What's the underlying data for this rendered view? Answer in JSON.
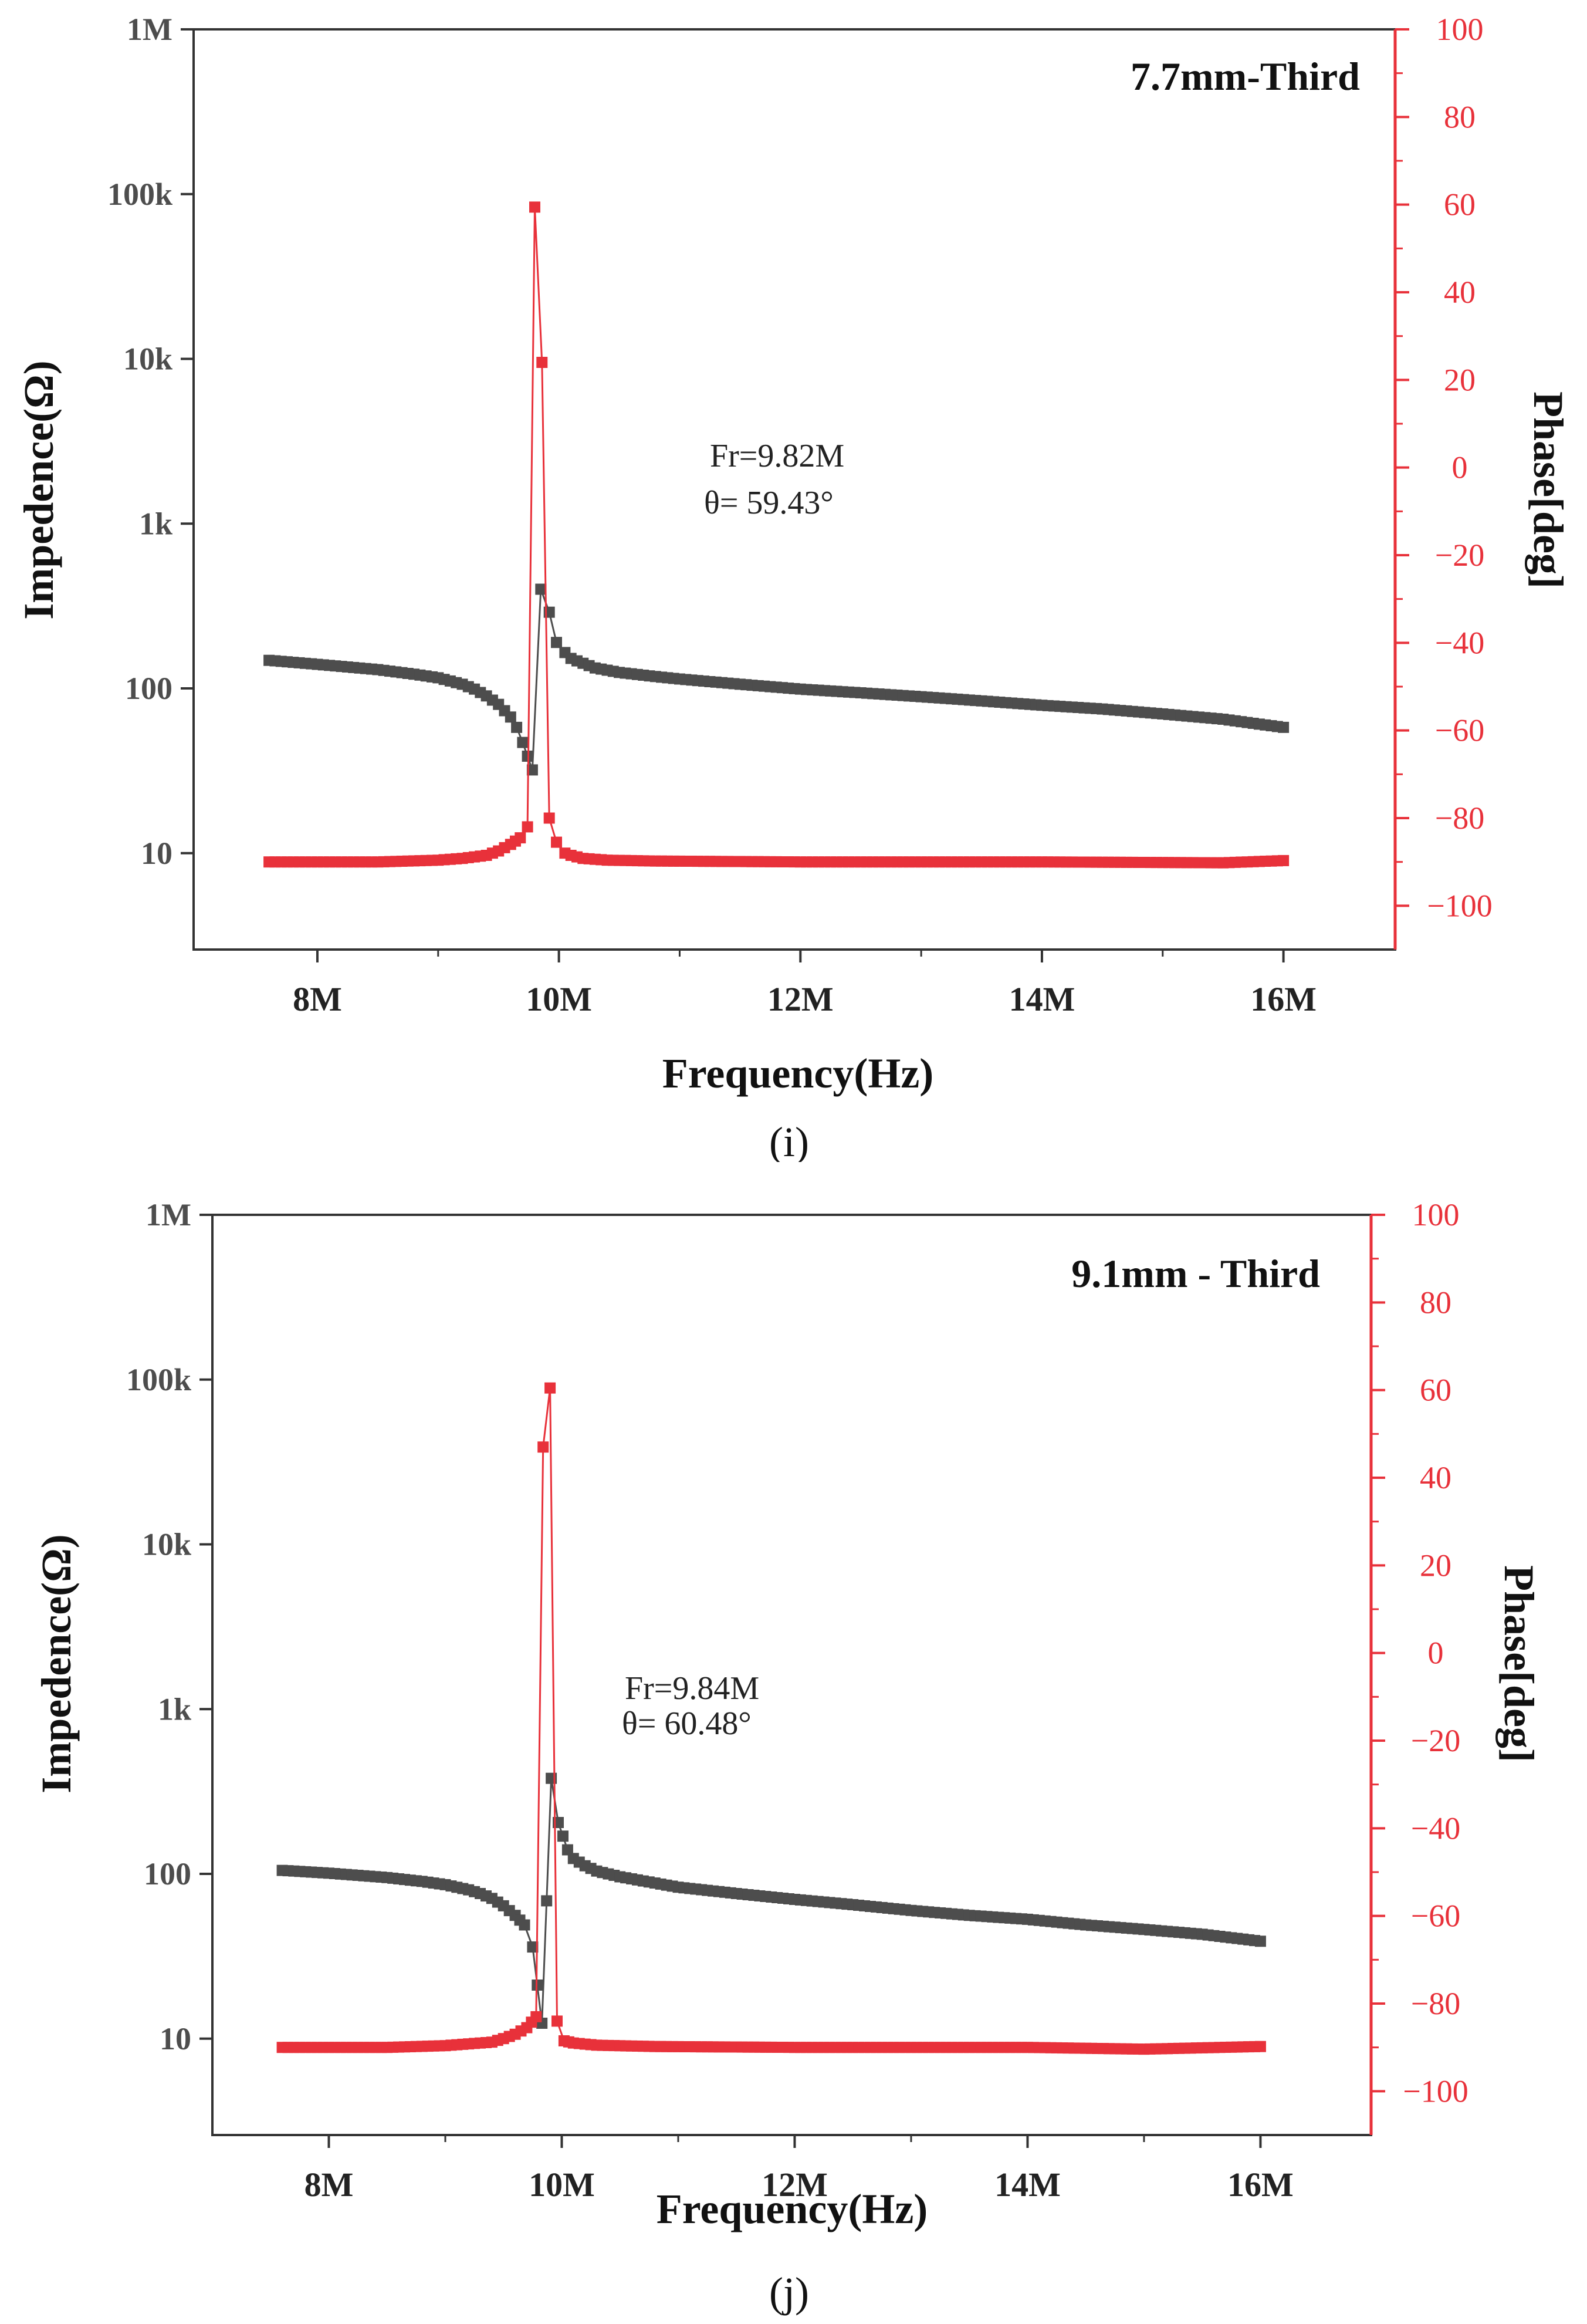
{
  "chart_data": [
    {
      "type": "line",
      "panel_label": "(i)",
      "title": "7.7mm-Third",
      "xlabel": "Frequency(Hz)",
      "ylabel_left": "Impedence(Ω)",
      "ylabel_right": "Phase[deg]",
      "x_ticks": [
        "8M",
        "10M",
        "12M",
        "14M",
        "16M"
      ],
      "x_tick_values": [
        8,
        10,
        12,
        14,
        16
      ],
      "xlim": [
        6.975,
        16.925
      ],
      "y_left_ticks": [
        "10",
        "100",
        "1k",
        "10k",
        "100k",
        "1M"
      ],
      "y_left_tick_values": [
        10,
        100,
        1000,
        10000,
        100000,
        1000000
      ],
      "y_left_scale": "log",
      "ylim_left": [
        2.6,
        1000000
      ],
      "y_right_ticks": [
        "−100",
        "−80",
        "−60",
        "−40",
        "−20",
        "0",
        "20",
        "40",
        "60",
        "80",
        "100"
      ],
      "y_right_tick_values": [
        -100,
        -80,
        -60,
        -40,
        -20,
        0,
        20,
        40,
        60,
        80,
        100
      ],
      "ylim_right": [
        -110,
        100
      ],
      "annotation": [
        "Fr=9.82M",
        "θ= 59.43°"
      ],
      "series": [
        {
          "name": "Impedance",
          "axis": "left",
          "color": "#4d4d4d",
          "points": [
            [
              7.6,
              148
            ],
            [
              8.0,
              140
            ],
            [
              8.5,
              130
            ],
            [
              8.8,
              122
            ],
            [
              9.0,
              116
            ],
            [
              9.2,
              106
            ],
            [
              9.3,
              99
            ],
            [
              9.4,
              90
            ],
            [
              9.5,
              80
            ],
            [
              9.6,
              67
            ],
            [
              9.65,
              58
            ],
            [
              9.7,
              47
            ],
            [
              9.78,
              32
            ],
            [
              9.85,
              400
            ],
            [
              9.92,
              290
            ],
            [
              9.98,
              190
            ],
            [
              10.05,
              165
            ],
            [
              10.1,
              152
            ],
            [
              10.2,
              142
            ],
            [
              10.3,
              133
            ],
            [
              10.5,
              125
            ],
            [
              10.8,
              118
            ],
            [
              11.0,
              114
            ],
            [
              11.5,
              106
            ],
            [
              12.0,
              99
            ],
            [
              12.5,
              94
            ],
            [
              13.0,
              89
            ],
            [
              13.5,
              84
            ],
            [
              14.0,
              79
            ],
            [
              14.5,
              75
            ],
            [
              15.0,
              70
            ],
            [
              15.5,
              65
            ],
            [
              16.0,
              58
            ]
          ]
        },
        {
          "name": "Phase",
          "axis": "right",
          "color": "#e8313a",
          "points": [
            [
              7.6,
              -90
            ],
            [
              8.5,
              -90
            ],
            [
              9.0,
              -89.6
            ],
            [
              9.2,
              -89.2
            ],
            [
              9.4,
              -88.5
            ],
            [
              9.5,
              -87.5
            ],
            [
              9.6,
              -86
            ],
            [
              9.68,
              -84.5
            ],
            [
              9.74,
              -82
            ],
            [
              9.8,
              59.43
            ],
            [
              9.86,
              24
            ],
            [
              9.92,
              -80
            ],
            [
              9.98,
              -85.5
            ],
            [
              10.05,
              -88
            ],
            [
              10.1,
              -88.5
            ],
            [
              10.2,
              -89.2
            ],
            [
              10.4,
              -89.6
            ],
            [
              10.8,
              -89.8
            ],
            [
              12.0,
              -90
            ],
            [
              14.0,
              -90
            ],
            [
              15.5,
              -90.2
            ],
            [
              16.0,
              -89.7
            ]
          ]
        }
      ]
    },
    {
      "type": "line",
      "panel_label": "(j)",
      "title": "9.1mm - Third",
      "xlabel": "Frequency(Hz)",
      "ylabel_left": "Impedence(Ω)",
      "ylabel_right": "Phase[deg]",
      "x_ticks": [
        "8M",
        "10M",
        "12M",
        "14M",
        "16M"
      ],
      "x_tick_values": [
        8,
        10,
        12,
        14,
        16
      ],
      "xlim": [
        7.0,
        16.95
      ],
      "y_left_ticks": [
        "10",
        "100",
        "1k",
        "10k",
        "100k",
        "1M"
      ],
      "y_left_tick_values": [
        10,
        100,
        1000,
        10000,
        100000,
        1000000
      ],
      "y_left_scale": "log",
      "ylim_left": [
        2.6,
        1000000
      ],
      "y_right_ticks": [
        "−100",
        "−80",
        "−60",
        "−40",
        "−20",
        "0",
        "20",
        "40",
        "60",
        "80",
        "100"
      ],
      "y_right_tick_values": [
        -100,
        -80,
        -60,
        -40,
        -20,
        0,
        20,
        40,
        60,
        80,
        100
      ],
      "ylim_right": [
        -110,
        100
      ],
      "annotation": [
        "Fr=9.84M",
        "θ= 60.48°"
      ],
      "series": [
        {
          "name": "Impedance",
          "axis": "left",
          "color": "#4d4d4d",
          "points": [
            [
              7.6,
              105
            ],
            [
              8.0,
              101
            ],
            [
              8.5,
              95
            ],
            [
              8.8,
              90
            ],
            [
              9.0,
              86
            ],
            [
              9.2,
              80
            ],
            [
              9.3,
              76
            ],
            [
              9.4,
              71
            ],
            [
              9.5,
              64
            ],
            [
              9.6,
              56
            ],
            [
              9.68,
              49
            ],
            [
              9.75,
              36
            ],
            [
              9.83,
              12.4
            ],
            [
              9.91,
              380
            ],
            [
              9.97,
              205
            ],
            [
              10.05,
              140
            ],
            [
              10.1,
              124
            ],
            [
              10.2,
              112
            ],
            [
              10.3,
              104
            ],
            [
              10.5,
              96
            ],
            [
              10.8,
              88
            ],
            [
              11.0,
              83
            ],
            [
              11.5,
              76
            ],
            [
              12.0,
              70
            ],
            [
              12.5,
              65
            ],
            [
              13.0,
              60
            ],
            [
              13.5,
              56
            ],
            [
              14.0,
              53
            ],
            [
              14.5,
              49
            ],
            [
              15.0,
              46
            ],
            [
              15.5,
              43
            ],
            [
              16.0,
              39
            ]
          ]
        },
        {
          "name": "Phase",
          "axis": "right",
          "color": "#e8313a",
          "points": [
            [
              7.6,
              -90
            ],
            [
              8.5,
              -90
            ],
            [
              9.0,
              -89.6
            ],
            [
              9.2,
              -89.2
            ],
            [
              9.4,
              -88.8
            ],
            [
              9.5,
              -88
            ],
            [
              9.6,
              -87
            ],
            [
              9.7,
              -85.5
            ],
            [
              9.78,
              -83
            ],
            [
              9.84,
              47
            ],
            [
              9.9,
              60.48
            ],
            [
              9.96,
              -84
            ],
            [
              10.02,
              -88.5
            ],
            [
              10.1,
              -89
            ],
            [
              10.3,
              -89.5
            ],
            [
              10.8,
              -89.8
            ],
            [
              12.0,
              -90
            ],
            [
              14.0,
              -90
            ],
            [
              15.0,
              -90.4
            ],
            [
              16.0,
              -89.8
            ]
          ]
        }
      ]
    }
  ]
}
